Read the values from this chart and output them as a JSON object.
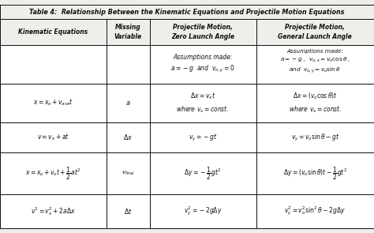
{
  "title": "Table 4:  Relationship Between the Kinematic Equations and Projectile Motion Equations",
  "col_headers": [
    "Kinematic Equations",
    "Missing\nVariable",
    "Projectile Motion,\nZero Launch Angle",
    "Projectile Motion,\nGeneral Launch Angle"
  ],
  "bg_color": "#f0eeea",
  "border_color": "#111111",
  "text_color": "#111111",
  "fig_width": 4.74,
  "fig_height": 2.95,
  "dpi": 100
}
